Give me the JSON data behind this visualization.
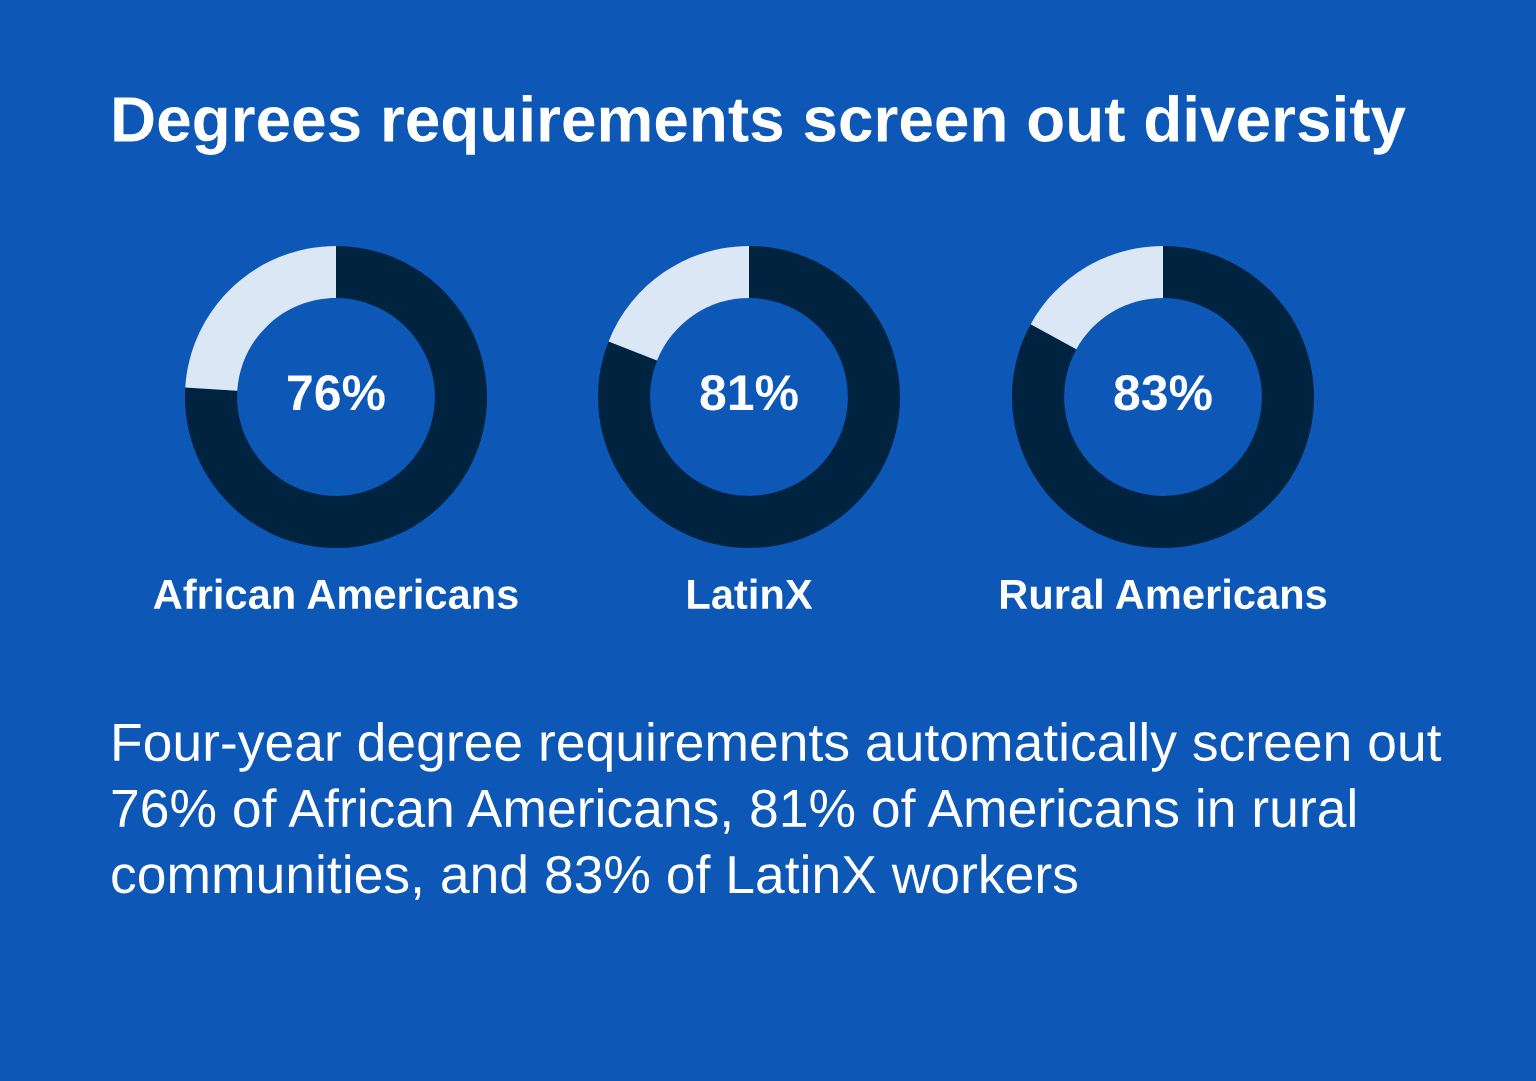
{
  "chart_data": [
    {
      "type": "other",
      "title": "Degrees requirements screen out diversity"
    },
    {
      "type": "donut",
      "categories": [
        null,
        null
      ],
      "values": [
        76,
        24
      ],
      "colors": [
        "#00243f",
        "#dce7f5"
      ],
      "value_labels": [
        "76%",
        null
      ],
      "xlabel": "African Americans"
    },
    {
      "type": "donut",
      "categories": [
        null,
        null
      ],
      "values": [
        81,
        19
      ],
      "colors": [
        "#00243f",
        "#dce7f5"
      ],
      "value_labels": [
        "81%",
        null
      ],
      "xlabel": "LatinX"
    },
    {
      "type": "donut",
      "categories": [
        null,
        null
      ],
      "values": [
        83,
        17
      ],
      "colors": [
        "#00243f",
        "#dce7f5"
      ],
      "value_labels": [
        "83%",
        null
      ],
      "xlabel": "Rural Americans"
    },
    {
      "type": "other",
      "annotations": [
        "Four-year degree requirements automatically screen out 76% of African Americans, 81% of Americans in rural communities, and 83% of LatinX workers"
      ]
    }
  ]
}
